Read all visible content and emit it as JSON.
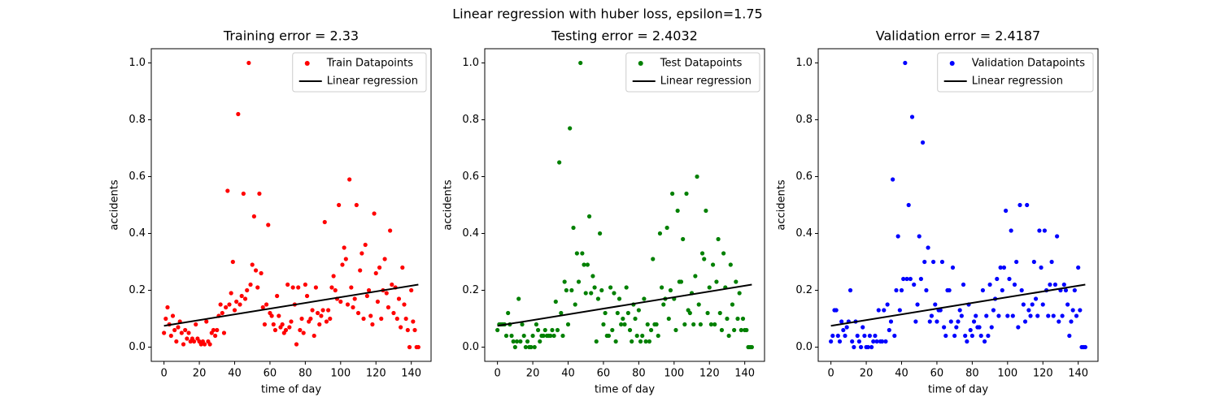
{
  "title": "Linear regression with huber loss, epsilon=1.75",
  "chart_data": [
    {
      "type": "scatter",
      "title": "Training error = 2.33",
      "xlabel": "time of day",
      "ylabel": "accidents",
      "legend": "upper right",
      "xlim": [
        -7.2,
        151.2
      ],
      "ylim": [
        -0.05,
        1.05
      ],
      "xticks": [
        0,
        20,
        40,
        60,
        80,
        100,
        120,
        140
      ],
      "yticks": [
        {
          "value": 0,
          "label": "0.0"
        },
        0.2,
        0.4,
        0.6,
        0.8,
        {
          "value": 1,
          "label": "1.0"
        }
      ],
      "x": [
        0,
        1,
        2,
        3,
        4,
        5,
        6,
        7,
        8,
        9,
        10,
        11,
        12,
        13,
        14,
        15,
        16,
        17,
        18,
        19,
        20,
        21,
        22,
        23,
        24,
        25,
        26,
        27,
        28,
        29,
        30,
        31,
        32,
        33,
        34,
        35,
        36,
        37,
        38,
        39,
        40,
        41,
        42,
        43,
        44,
        45,
        46,
        47,
        48,
        49,
        50,
        51,
        52,
        53,
        54,
        55,
        56,
        57,
        58,
        59,
        60,
        61,
        62,
        63,
        64,
        65,
        66,
        67,
        68,
        69,
        70,
        71,
        72,
        73,
        74,
        75,
        76,
        77,
        78,
        79,
        80,
        81,
        82,
        83,
        84,
        85,
        86,
        87,
        88,
        89,
        90,
        91,
        92,
        93,
        94,
        95,
        96,
        97,
        98,
        99,
        100,
        101,
        102,
        103,
        104,
        105,
        106,
        107,
        108,
        109,
        110,
        111,
        112,
        113,
        114,
        115,
        116,
        117,
        118,
        119,
        120,
        121,
        122,
        123,
        124,
        125,
        126,
        127,
        128,
        129,
        130,
        131,
        132,
        133,
        134,
        135,
        136,
        137,
        138,
        139,
        140,
        141,
        142,
        143,
        144
      ],
      "series": [
        {
          "name": "Train Datapoints",
          "color": "#ff0000",
          "values": [
            0.05,
            0.1,
            0.14,
            0.08,
            0.04,
            0.11,
            0.06,
            0.02,
            0.07,
            0.09,
            0.05,
            0.01,
            0.06,
            0.03,
            0.05,
            0.02,
            0.03,
            0.02,
            0.08,
            0.03,
            0.02,
            0.01,
            0.02,
            0.01,
            0.09,
            0.02,
            0.01,
            0.05,
            0.06,
            0.04,
            0.06,
            0.11,
            0.15,
            0.12,
            0.05,
            0.14,
            0.55,
            0.15,
            0.19,
            0.3,
            0.13,
            0.16,
            0.82,
            0.15,
            0.18,
            0.54,
            0.17,
            0.2,
            1.0,
            0.22,
            0.29,
            0.46,
            0.27,
            0.21,
            0.54,
            0.26,
            0.14,
            0.08,
            0.15,
            0.43,
            0.12,
            0.11,
            0.08,
            0.06,
            0.18,
            0.11,
            0.07,
            0.08,
            0.05,
            0.06,
            0.22,
            0.07,
            0.09,
            0.21,
            0.15,
            0.01,
            0.21,
            0.06,
            0.1,
            0.05,
            0.22,
            0.18,
            0.09,
            0.1,
            0.13,
            0.04,
            0.21,
            0.12,
            0.08,
            0.11,
            0.13,
            0.44,
            0.09,
            0.13,
            0.1,
            0.21,
            0.25,
            0.2,
            0.17,
            0.5,
            0.16,
            0.29,
            0.35,
            0.31,
            0.15,
            0.59,
            0.21,
            0.14,
            0.17,
            0.5,
            0.12,
            0.27,
            0.33,
            0.1,
            0.36,
            0.18,
            0.2,
            0.11,
            0.08,
            0.47,
            0.26,
            0.16,
            0.28,
            0.1,
            0.2,
            0.31,
            0.19,
            0.14,
            0.41,
            0.22,
            0.12,
            0.21,
            0.1,
            0.17,
            0.07,
            0.28,
            0.15,
            0.1,
            0.06,
            0.0,
            0.2,
            0.09,
            0.06,
            0.0,
            0.0
          ]
        },
        {
          "name": "Linear regression",
          "color": "#000000",
          "x": [
            0,
            144
          ],
          "values": [
            0.075,
            0.22
          ]
        }
      ]
    },
    {
      "type": "scatter",
      "title": "Testing error = 2.4032",
      "xlabel": "time of day",
      "ylabel": "accidents",
      "legend": "upper right",
      "xlim": [
        -7.2,
        151.2
      ],
      "ylim": [
        -0.05,
        1.05
      ],
      "xticks": [
        0,
        20,
        40,
        60,
        80,
        100,
        120,
        140
      ],
      "yticks": [
        {
          "value": 0,
          "label": "0.0"
        },
        0.2,
        0.4,
        0.6,
        0.8,
        {
          "value": 1,
          "label": "1.0"
        }
      ],
      "x": [
        0,
        1,
        2,
        3,
        4,
        5,
        6,
        7,
        8,
        9,
        10,
        11,
        12,
        13,
        14,
        15,
        16,
        17,
        18,
        19,
        20,
        21,
        22,
        23,
        24,
        25,
        26,
        27,
        28,
        29,
        30,
        31,
        32,
        33,
        34,
        35,
        36,
        37,
        38,
        39,
        40,
        41,
        42,
        43,
        44,
        45,
        46,
        47,
        48,
        49,
        50,
        51,
        52,
        53,
        54,
        55,
        56,
        57,
        58,
        59,
        60,
        61,
        62,
        63,
        64,
        65,
        66,
        67,
        68,
        69,
        70,
        71,
        72,
        73,
        74,
        75,
        76,
        77,
        78,
        79,
        80,
        81,
        82,
        83,
        84,
        85,
        86,
        87,
        88,
        89,
        90,
        91,
        92,
        93,
        94,
        95,
        96,
        97,
        98,
        99,
        100,
        101,
        102,
        103,
        104,
        105,
        106,
        107,
        108,
        109,
        110,
        111,
        112,
        113,
        114,
        115,
        116,
        117,
        118,
        119,
        120,
        121,
        122,
        123,
        124,
        125,
        126,
        127,
        128,
        129,
        130,
        131,
        132,
        133,
        134,
        135,
        136,
        137,
        138,
        139,
        140,
        141,
        142,
        143,
        144
      ],
      "series": [
        {
          "name": "Test Datapoints",
          "color": "#008000",
          "values": [
            0.06,
            0.08,
            0.08,
            0.08,
            0.08,
            0.04,
            0.12,
            0.08,
            0.04,
            0.02,
            0.0,
            0.02,
            0.17,
            0.02,
            0.08,
            0.04,
            0.0,
            0.02,
            0.0,
            0.0,
            0.04,
            0.0,
            0.08,
            0.06,
            0.02,
            0.04,
            0.04,
            0.06,
            0.04,
            0.04,
            0.04,
            0.06,
            0.04,
            0.16,
            0.06,
            0.65,
            0.12,
            0.04,
            0.23,
            0.2,
            0.08,
            0.77,
            0.2,
            0.42,
            0.15,
            0.33,
            0.23,
            1.0,
            0.33,
            0.29,
            0.19,
            0.29,
            0.46,
            0.19,
            0.25,
            0.21,
            0.02,
            0.17,
            0.4,
            0.2,
            0.08,
            0.12,
            0.04,
            0.04,
            0.21,
            0.06,
            0.19,
            0.02,
            0.12,
            0.17,
            0.08,
            0.1,
            0.08,
            0.21,
            0.12,
            0.06,
            0.02,
            0.15,
            0.1,
            0.04,
            0.13,
            0.02,
            0.04,
            0.17,
            0.02,
            0.08,
            0.02,
            0.06,
            0.31,
            0.08,
            0.08,
            0.04,
            0.4,
            0.21,
            0.15,
            0.17,
            0.42,
            0.1,
            0.2,
            0.54,
            0.17,
            0.06,
            0.48,
            0.23,
            0.23,
            0.38,
            0.08,
            0.54,
            0.13,
            0.12,
            0.19,
            0.08,
            0.25,
            0.6,
            0.15,
            0.08,
            0.33,
            0.31,
            0.48,
            0.12,
            0.21,
            0.08,
            0.29,
            0.08,
            0.23,
            0.38,
            0.12,
            0.06,
            0.33,
            0.21,
            0.1,
            0.04,
            0.29,
            0.15,
            0.06,
            0.23,
            0.1,
            0.19,
            0.06,
            0.1,
            0.06,
            0.06,
            0.0,
            0.0,
            0.0
          ]
        },
        {
          "name": "Linear regression",
          "color": "#000000",
          "x": [
            0,
            144
          ],
          "values": [
            0.075,
            0.22
          ]
        }
      ]
    },
    {
      "type": "scatter",
      "title": "Validation error = 2.4187",
      "xlabel": "time of day",
      "ylabel": "accidents",
      "legend": "upper right",
      "xlim": [
        -7.2,
        151.2
      ],
      "ylim": [
        -0.05,
        1.05
      ],
      "xticks": [
        0,
        20,
        40,
        60,
        80,
        100,
        120,
        140
      ],
      "yticks": [
        {
          "value": 0,
          "label": "0.0"
        },
        0.2,
        0.4,
        0.6,
        0.8,
        {
          "value": 1,
          "label": "1.0"
        }
      ],
      "x": [
        0,
        1,
        2,
        3,
        4,
        5,
        6,
        7,
        8,
        9,
        10,
        11,
        12,
        13,
        14,
        15,
        16,
        17,
        18,
        19,
        20,
        21,
        22,
        23,
        24,
        25,
        26,
        27,
        28,
        29,
        30,
        31,
        32,
        33,
        34,
        35,
        36,
        37,
        38,
        39,
        40,
        41,
        42,
        43,
        44,
        45,
        46,
        47,
        48,
        49,
        50,
        51,
        52,
        53,
        54,
        55,
        56,
        57,
        58,
        59,
        60,
        61,
        62,
        63,
        64,
        65,
        66,
        67,
        68,
        69,
        70,
        71,
        72,
        73,
        74,
        75,
        76,
        77,
        78,
        79,
        80,
        81,
        82,
        83,
        84,
        85,
        86,
        87,
        88,
        89,
        90,
        91,
        92,
        93,
        94,
        95,
        96,
        97,
        98,
        99,
        100,
        101,
        102,
        103,
        104,
        105,
        106,
        107,
        108,
        109,
        110,
        111,
        112,
        113,
        114,
        115,
        116,
        117,
        118,
        119,
        120,
        121,
        122,
        123,
        124,
        125,
        126,
        127,
        128,
        129,
        130,
        131,
        132,
        133,
        134,
        135,
        136,
        137,
        138,
        139,
        140,
        141,
        142,
        143,
        144
      ],
      "series": [
        {
          "name": "Validation Datapoints",
          "color": "#0000ff",
          "values": [
            0.02,
            0.04,
            0.13,
            0.13,
            0.04,
            0.02,
            0.09,
            0.06,
            0.04,
            0.07,
            0.09,
            0.2,
            0.02,
            0.0,
            0.09,
            0.04,
            0.02,
            0.0,
            0.07,
            0.04,
            0.0,
            0.0,
            0.04,
            0.0,
            0.02,
            0.04,
            0.02,
            0.13,
            0.02,
            0.02,
            0.13,
            0.02,
            0.15,
            0.06,
            0.09,
            0.59,
            0.04,
            0.2,
            0.39,
            0.13,
            0.2,
            0.24,
            1.0,
            0.24,
            0.5,
            0.24,
            0.81,
            0.22,
            0.09,
            0.15,
            0.39,
            0.24,
            0.72,
            0.3,
            0.2,
            0.35,
            0.09,
            0.11,
            0.3,
            0.15,
            0.09,
            0.13,
            0.13,
            0.3,
            0.07,
            0.04,
            0.2,
            0.2,
            0.09,
            0.28,
            0.04,
            0.07,
            0.09,
            0.13,
            0.11,
            0.22,
            0.04,
            0.02,
            0.15,
            0.06,
            0.04,
            0.09,
            0.11,
            0.07,
            0.07,
            0.04,
            0.2,
            0.02,
            0.11,
            0.04,
            0.22,
            0.07,
            0.13,
            0.17,
            0.24,
            0.11,
            0.28,
            0.2,
            0.28,
            0.48,
            0.11,
            0.24,
            0.41,
            0.11,
            0.22,
            0.3,
            0.07,
            0.5,
            0.2,
            0.15,
            0.09,
            0.5,
            0.13,
            0.11,
            0.15,
            0.3,
            0.17,
            0.11,
            0.41,
            0.28,
            0.15,
            0.41,
            0.2,
            0.11,
            0.22,
            0.3,
            0.11,
            0.22,
            0.39,
            0.09,
            0.2,
            0.11,
            0.22,
            0.2,
            0.15,
            0.04,
            0.09,
            0.13,
            0.2,
            0.11,
            0.28,
            0.13,
            0.0,
            0.0,
            0.0
          ]
        },
        {
          "name": "Linear regression",
          "color": "#000000",
          "x": [
            0,
            144
          ],
          "values": [
            0.075,
            0.22
          ]
        }
      ]
    }
  ]
}
